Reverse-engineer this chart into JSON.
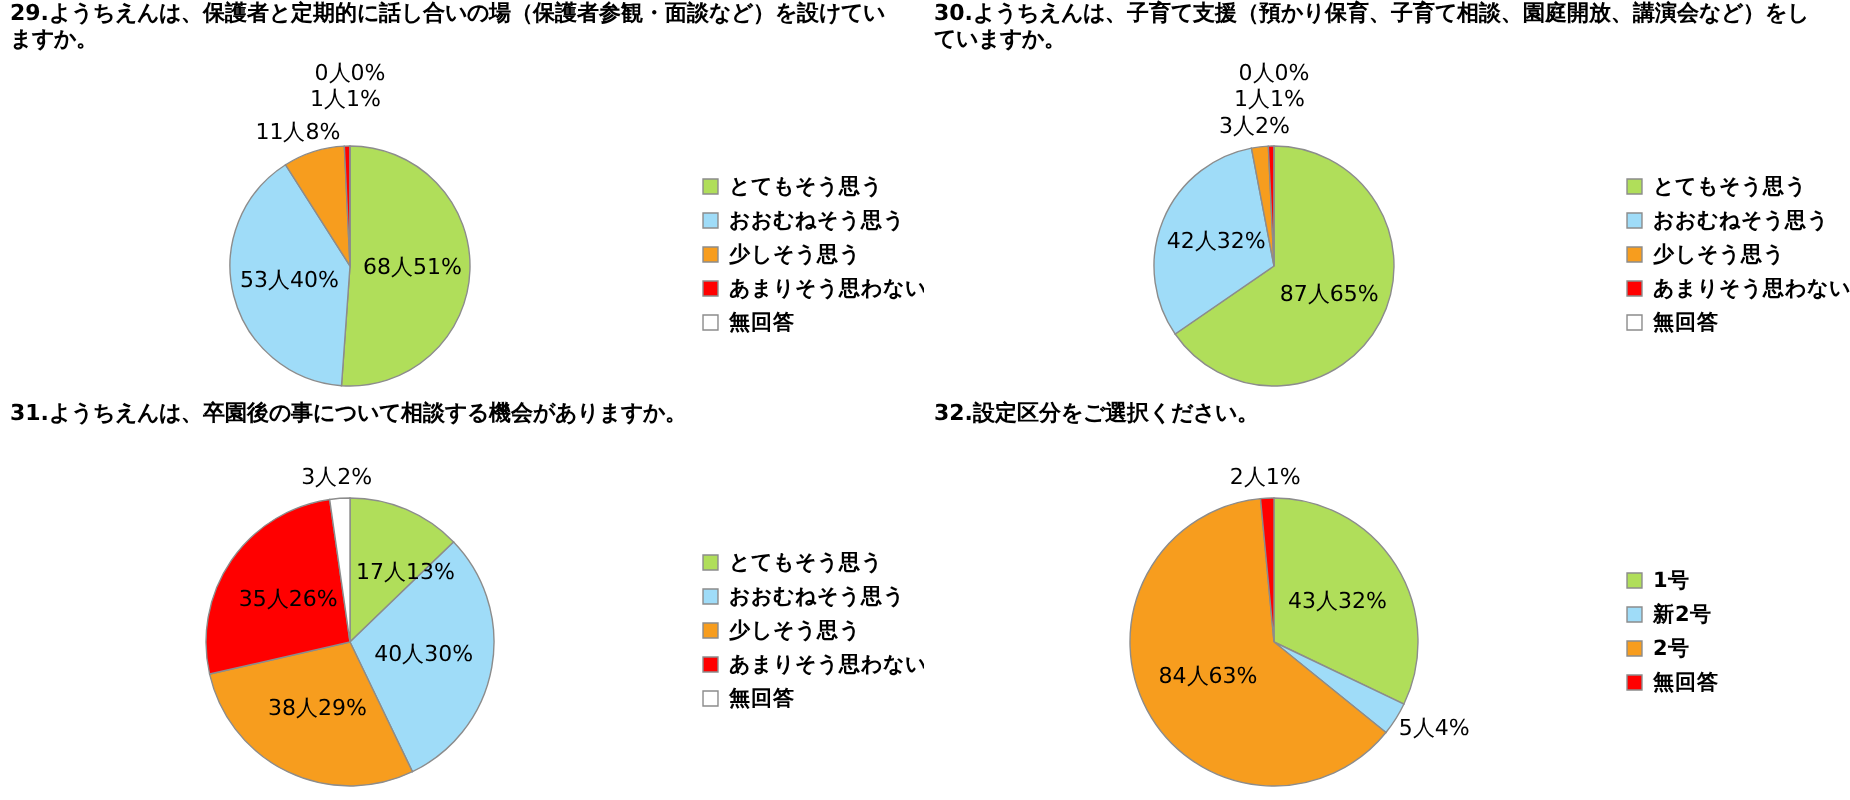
{
  "chart_data": [
    {
      "type": "pie",
      "title": "29.ようちえんは、保護者と定期的に話し合いの場（保護者参観・面談など）を設けていますか。",
      "categories": [
        "とてもそう思う",
        "おおむねそう思う",
        "少しそう思う",
        "あまりそう思わない",
        "無回答"
      ],
      "values": [
        68,
        53,
        11,
        1,
        0
      ],
      "colors": [
        "#b0de5a",
        "#9fdcf8",
        "#f79d1e",
        "#ff0000",
        "#ffffff"
      ],
      "value_labels": [
        "68人51%",
        "53人40%",
        "11人8%",
        "1人1%",
        "0人0%"
      ],
      "legend": "right"
    },
    {
      "type": "pie",
      "title": "30.ようちえんは、子育て支援（預かり保育、子育て相談、園庭開放、講演会など）をしていますか。",
      "categories": [
        "とてもそう思う",
        "おおむねそう思う",
        "少しそう思う",
        "あまりそう思わない",
        "無回答"
      ],
      "values": [
        87,
        42,
        3,
        1,
        0
      ],
      "colors": [
        "#b0de5a",
        "#9fdcf8",
        "#f79d1e",
        "#ff0000",
        "#ffffff"
      ],
      "value_labels": [
        "87人65%",
        "42人32%",
        "3人2%",
        "1人1%",
        "0人0%"
      ],
      "legend": "right"
    },
    {
      "type": "pie",
      "title": "31.ようちえんは、卒園後の事について相談する機会がありますか。",
      "categories": [
        "とてもそう思う",
        "おおむねそう思う",
        "少しそう思う",
        "あまりそう思わない",
        "無回答"
      ],
      "values": [
        17,
        40,
        38,
        35,
        3
      ],
      "colors": [
        "#b0de5a",
        "#9fdcf8",
        "#f79d1e",
        "#ff0000",
        "#ffffff"
      ],
      "value_labels": [
        "17人13%",
        "40人30%",
        "38人29%",
        "35人26%",
        "3人2%"
      ],
      "legend": "right"
    },
    {
      "type": "pie",
      "title": "32.設定区分をご選択ください。",
      "categories": [
        "1号",
        "新2号",
        "2号",
        "無回答"
      ],
      "values": [
        43,
        5,
        84,
        2
      ],
      "colors": [
        "#b0de5a",
        "#9fdcf8",
        "#f79d1e",
        "#ff0000"
      ],
      "value_labels": [
        "43人32%",
        "5人4%",
        "84人63%",
        "2人1%"
      ],
      "legend": "right"
    }
  ]
}
